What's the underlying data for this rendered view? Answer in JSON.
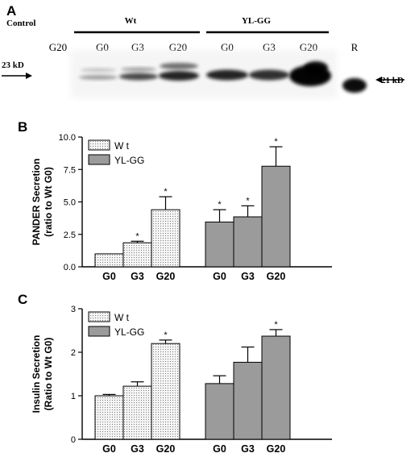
{
  "panel_a": {
    "letter": "A",
    "group_labels": [
      "Control",
      "Wt",
      "YL-GG"
    ],
    "lane_labels": [
      "G20",
      "G0",
      "G3",
      "G20",
      "G0",
      "G3",
      "G20",
      "R"
    ],
    "marker_left": "23 kD",
    "marker_right": "21 kD"
  },
  "chart_data": [
    {
      "panel": "B",
      "type": "bar",
      "ylabel_line1": "PANDER Secretion",
      "ylabel_line2": "(ratio to Wt G0)",
      "ylim": [
        0,
        10
      ],
      "yticks": [
        "0.0",
        "2.5",
        "5.0",
        "7.5",
        "10.0"
      ],
      "ytick_values": [
        0,
        2.5,
        5,
        7.5,
        10
      ],
      "categories": [
        "G0",
        "G3",
        "G20"
      ],
      "series": [
        {
          "name": "Wt",
          "values": [
            1.0,
            1.85,
            4.4
          ],
          "errors": [
            0,
            0.12,
            1.0
          ],
          "significant": [
            false,
            true,
            true
          ]
        },
        {
          "name": "YL-GG",
          "values": [
            3.45,
            3.85,
            7.75
          ],
          "errors": [
            0.95,
            0.85,
            1.5
          ],
          "significant": [
            true,
            true,
            true
          ]
        }
      ],
      "legend_labels": [
        "W t",
        "YL-GG"
      ],
      "significance_mark": "*",
      "legend": "top-left",
      "grid": false
    },
    {
      "panel": "C",
      "type": "bar",
      "ylabel_line1": "Insulin Secretion",
      "ylabel_line2": "(Ratio to Wt G0)",
      "ylim": [
        0,
        3
      ],
      "yticks": [
        "0",
        "1",
        "2",
        "3"
      ],
      "ytick_values": [
        0,
        1,
        2,
        3
      ],
      "categories": [
        "G0",
        "G3",
        "G20"
      ],
      "series": [
        {
          "name": "Wt",
          "values": [
            1.0,
            1.22,
            2.2
          ],
          "errors": [
            0.03,
            0.1,
            0.08
          ],
          "significant": [
            false,
            false,
            true
          ]
        },
        {
          "name": "YL-GG",
          "values": [
            1.28,
            1.77,
            2.37
          ],
          "errors": [
            0.18,
            0.35,
            0.15
          ],
          "significant": [
            false,
            false,
            true
          ]
        }
      ],
      "legend_labels": [
        "W t",
        "YL-GG"
      ],
      "significance_mark": "*",
      "legend": "top-left",
      "grid": false
    }
  ],
  "colors": {
    "wt_fill": "#f1f1f1",
    "ylgg_fill": "#9b9b9b",
    "ink": "#000000"
  }
}
